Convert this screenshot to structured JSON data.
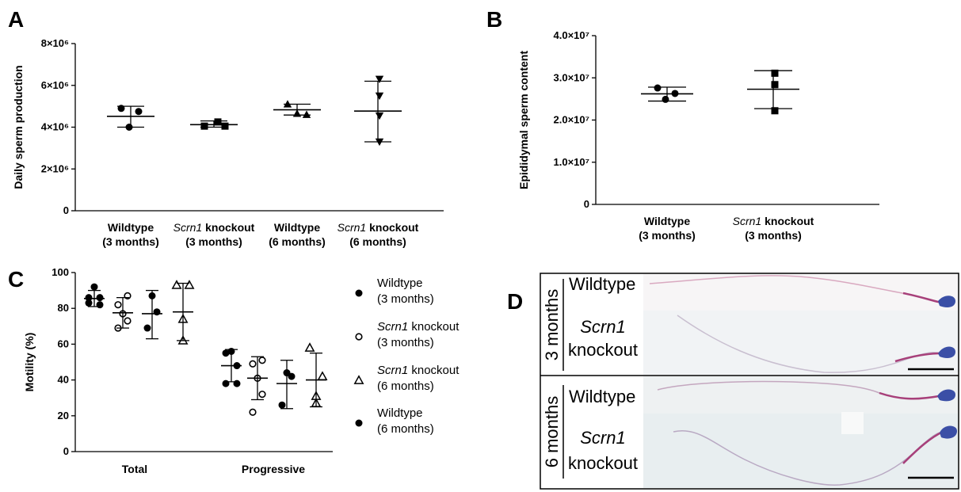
{
  "chart_data": [
    {
      "panel": "A",
      "type": "scatter",
      "ylabel": "Daily sperm production",
      "ylim": [
        0,
        8000000
      ],
      "yticks": [
        "0",
        "2×10⁶",
        "4×10⁶",
        "6×10⁶",
        "8×10⁶"
      ],
      "categories": [
        {
          "l1_pre": "",
          "l1_it": "",
          "l1_post": "Wildtype",
          "l2": "(3 months)"
        },
        {
          "l1_pre": "",
          "l1_it": "Scrn1",
          "l1_post": " knockout",
          "l2": "(3 months)"
        },
        {
          "l1_pre": "",
          "l1_it": "",
          "l1_post": "Wildtype",
          "l2": "(6 months)"
        },
        {
          "l1_pre": "",
          "l1_it": "Scrn1",
          "l1_post": " knockout",
          "l2": "(6 months)"
        }
      ],
      "groups": [
        {
          "marker": "circle",
          "points": [
            4900000,
            4750000,
            4000000
          ],
          "mean": 4520000,
          "sd_low": 4000000,
          "sd_high": 5000000
        },
        {
          "marker": "square",
          "points": [
            4050000,
            4250000,
            4050000
          ],
          "mean": 4120000,
          "sd_low": 4000000,
          "sd_high": 4300000
        },
        {
          "marker": "triangle-up",
          "points": [
            5100000,
            4650000,
            4600000
          ],
          "mean": 4830000,
          "sd_low": 4580000,
          "sd_high": 5100000
        },
        {
          "marker": "triangle-down",
          "points": [
            6300000,
            5500000,
            4550000,
            3300000
          ],
          "mean": 4770000,
          "sd_low": 3300000,
          "sd_high": 6200000
        }
      ]
    },
    {
      "panel": "B",
      "type": "scatter",
      "ylabel": "Epididymal sperm content",
      "ylim": [
        0,
        40000000
      ],
      "yticks": [
        "0",
        "1.0×10⁷",
        "2.0×10⁷",
        "3.0×10⁷",
        "4.0×10⁷"
      ],
      "categories": [
        {
          "l1_pre": "",
          "l1_it": "",
          "l1_post": "Wildtype",
          "l2": "(3 months)"
        },
        {
          "l1_pre": "",
          "l1_it": "Scrn1",
          "l1_post": " knockout",
          "l2": "(3 months)"
        }
      ],
      "groups": [
        {
          "marker": "circle",
          "points": [
            27600000,
            26300000,
            24900000
          ],
          "mean": 26200000,
          "sd_low": 24500000,
          "sd_high": 27800000
        },
        {
          "marker": "square",
          "points": [
            31100000,
            28400000,
            22200000
          ],
          "mean": 27300000,
          "sd_low": 22700000,
          "sd_high": 31700000
        }
      ]
    },
    {
      "panel": "C",
      "type": "scatter",
      "ylabel": "Motility (%)",
      "ylim": [
        0,
        100
      ],
      "yticks": [
        "0",
        "20",
        "40",
        "60",
        "80",
        "100"
      ],
      "categories": [
        "Total",
        "Progressive"
      ],
      "clusters": [
        {
          "category": "Total",
          "groups": [
            {
              "marker": "filled-circle",
              "points": [
                92,
                86,
                86,
                83,
                82
              ],
              "mean": 85.5,
              "sd_low": 81,
              "sd_high": 90
            },
            {
              "marker": "open-circle",
              "points": [
                87,
                82,
                77,
                73,
                69
              ],
              "mean": 77.5,
              "sd_low": 69,
              "sd_high": 86
            },
            {
              "marker": "filled-circle",
              "points": [
                87,
                78,
                69
              ],
              "mean": 77,
              "sd_low": 63,
              "sd_high": 90
            },
            {
              "marker": "open-triangle",
              "points": [
                93,
                93,
                74,
                62
              ],
              "mean": 78,
              "sd_low": 62,
              "sd_high": 94
            }
          ]
        },
        {
          "category": "Progressive",
          "groups": [
            {
              "marker": "filled-circle",
              "points": [
                56,
                55,
                48,
                38,
                38
              ],
              "mean": 48,
              "sd_low": 39,
              "sd_high": 57
            },
            {
              "marker": "open-circle",
              "points": [
                51,
                49,
                41,
                32,
                22
              ],
              "mean": 41,
              "sd_low": 29,
              "sd_high": 53
            },
            {
              "marker": "filled-circle",
              "points": [
                44,
                42,
                26
              ],
              "mean": 38,
              "sd_low": 24,
              "sd_high": 51
            },
            {
              "marker": "open-triangle",
              "points": [
                58,
                42,
                31,
                27
              ],
              "mean": 40,
              "sd_low": 25,
              "sd_high": 55
            }
          ]
        }
      ],
      "legend": [
        {
          "marker": "filled-circle",
          "it": "",
          "l1": "Wildtype",
          "l2": "(3 months)"
        },
        {
          "marker": "open-circle",
          "it": "Scrn1",
          "l1": " knockout",
          "l2": "(3 months)"
        },
        {
          "marker": "open-triangle",
          "it": "Scrn1",
          "l1": " knockout",
          "l2": "(6 months)"
        },
        {
          "marker": "filled-circle",
          "it": "",
          "l1": "Wildtype",
          "l2": "(6 months)"
        }
      ]
    }
  ],
  "panels": {
    "a": "A",
    "b": "B",
    "c": "C",
    "d": "D"
  },
  "panel_d": {
    "rows": [
      {
        "age": "3 months",
        "wildtype": "Wildtype",
        "ko_gene": "Scrn1",
        "ko_word": "knockout"
      },
      {
        "age": "6 months",
        "wildtype": "Wildtype",
        "ko_gene": "Scrn1",
        "ko_word": "knockout"
      }
    ]
  }
}
